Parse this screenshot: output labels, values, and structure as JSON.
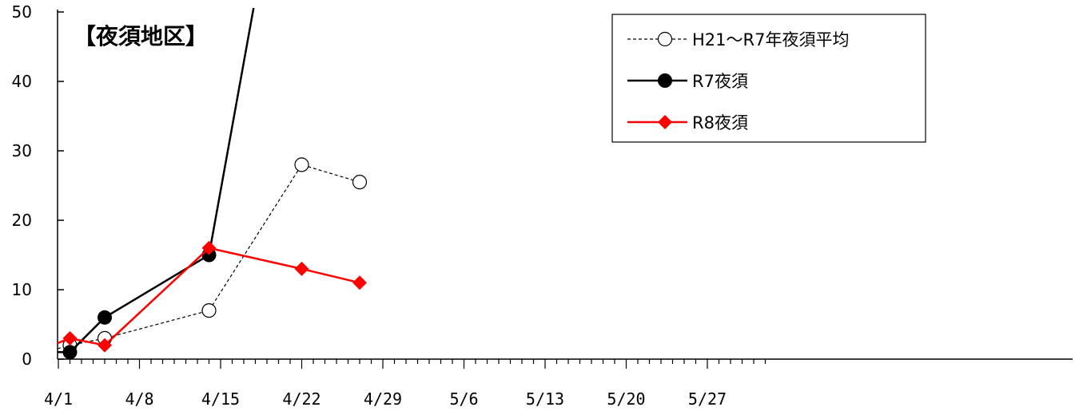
{
  "chart_data": {
    "type": "line",
    "title": "【夜須地区】",
    "x_tick_labels": [
      "4/1",
      "4/8",
      "4/15",
      "4/22",
      "4/29",
      "5/6",
      "5/13",
      "5/20",
      "5/27"
    ],
    "y_tick_labels": [
      "0",
      "10",
      "20",
      "30",
      "40",
      "50"
    ],
    "ylim": [
      0,
      50
    ],
    "xlim_days_label": "4/1 to 6/1",
    "legend_position": "top-right",
    "grid": false,
    "series": [
      {
        "name": "H21～R7年夜須平均",
        "style": "dashed",
        "color": "#000000",
        "marker": "open-circle",
        "points": [
          {
            "x": "4/2",
            "y": 2
          },
          {
            "x": "4/5",
            "y": 3
          },
          {
            "x": "4/14",
            "y": 7
          },
          {
            "x": "4/22",
            "y": 28
          },
          {
            "x": "4/27",
            "y": 25.5
          }
        ]
      },
      {
        "name": "R7夜須",
        "style": "solid",
        "color": "#000000",
        "marker": "filled-circle",
        "points": [
          {
            "x": "4/2",
            "y": 1
          },
          {
            "x": "4/5",
            "y": 6
          },
          {
            "x": "4/14",
            "y": 15
          },
          {
            "x": "4/18",
            "y": 52
          }
        ]
      },
      {
        "name": "R8夜須",
        "style": "solid",
        "color": "#ff0000",
        "marker": "diamond",
        "points": [
          {
            "x": "4/2",
            "y": 3
          },
          {
            "x": "4/5",
            "y": 2
          },
          {
            "x": "4/14",
            "y": 16
          },
          {
            "x": "4/22",
            "y": 13
          },
          {
            "x": "4/27",
            "y": 11
          }
        ]
      }
    ]
  }
}
